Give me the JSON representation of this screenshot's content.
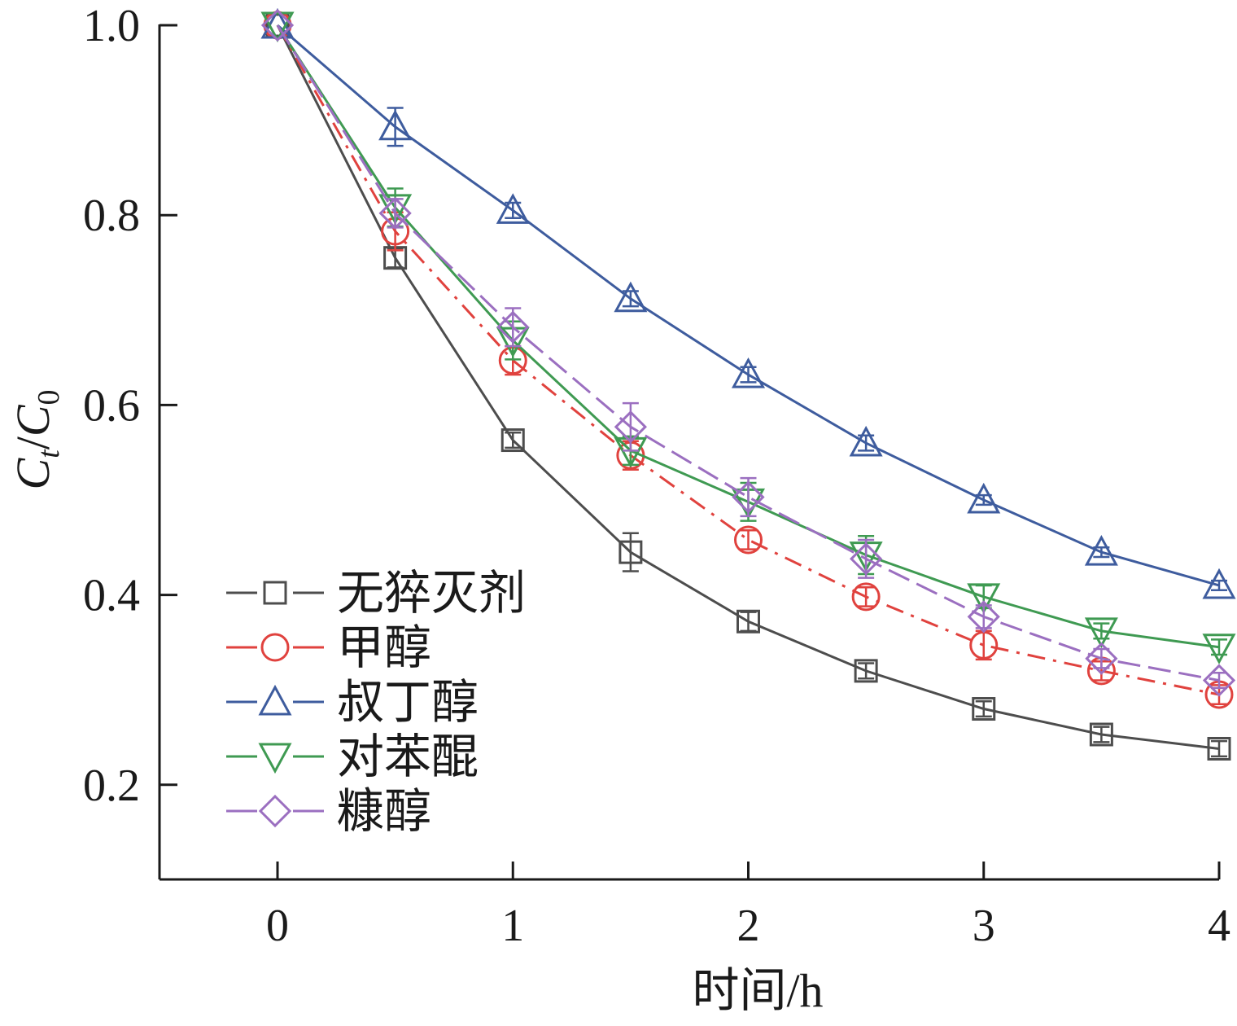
{
  "chart_data": {
    "type": "line",
    "title": "",
    "xlabel": "时间/h",
    "ylabel": {
      "main": "C",
      "sub1": "t",
      "sep": "/",
      "main2": "C",
      "sub2": "0"
    },
    "xlim": [
      -0.5,
      4
    ],
    "ylim": [
      0.1,
      1.0
    ],
    "xticks": [
      0,
      1,
      2,
      3,
      4
    ],
    "xtick_labels": [
      "0",
      "1",
      "2",
      "3",
      "4"
    ],
    "yticks": [
      0.2,
      0.4,
      0.6,
      0.8,
      1.0
    ],
    "ytick_labels": [
      "0.2",
      "0.4",
      "0.6",
      "0.8",
      "1.0"
    ],
    "grid": false,
    "legend_position": "bottom-left",
    "x": [
      0,
      0.5,
      1,
      1.5,
      2,
      2.5,
      3,
      3.5,
      4
    ],
    "series": [
      {
        "name": "无猝灭剂",
        "color": "#4d4d4d",
        "marker": "square",
        "dash": "solid",
        "values": [
          1.0,
          0.755,
          0.563,
          0.445,
          0.372,
          0.32,
          0.28,
          0.253,
          0.238
        ],
        "errors": [
          0.0,
          0.01,
          0.008,
          0.02,
          0.01,
          0.008,
          0.008,
          0.008,
          0.008
        ]
      },
      {
        "name": "甲醇",
        "color": "#e0423e",
        "marker": "circle",
        "dash": "dashdot",
        "values": [
          1.0,
          0.783,
          0.647,
          0.547,
          0.458,
          0.398,
          0.347,
          0.32,
          0.295
        ],
        "errors": [
          0.0,
          0.02,
          0.015,
          0.015,
          0.01,
          0.01,
          0.015,
          0.01,
          0.01
        ]
      },
      {
        "name": "叔丁醇",
        "color": "#3e5c9e",
        "marker": "triangle-up",
        "dash": "solid",
        "values": [
          1.0,
          0.893,
          0.805,
          0.712,
          0.632,
          0.56,
          0.5,
          0.445,
          0.41
        ],
        "errors": [
          0.0,
          0.02,
          0.008,
          0.008,
          0.008,
          0.008,
          0.005,
          0.005,
          0.005
        ]
      },
      {
        "name": "对苯醌",
        "color": "#3f9a52",
        "marker": "triangle-down",
        "dash": "solid",
        "values": [
          1.0,
          0.808,
          0.668,
          0.552,
          0.498,
          0.442,
          0.398,
          0.362,
          0.345
        ],
        "errors": [
          0.0,
          0.02,
          0.02,
          0.015,
          0.02,
          0.02,
          0.012,
          0.008,
          0.008
        ]
      },
      {
        "name": "糠醇",
        "color": "#9b6fc0",
        "marker": "diamond",
        "dash": "longdash",
        "values": [
          1.0,
          0.802,
          0.682,
          0.577,
          0.503,
          0.438,
          0.377,
          0.333,
          0.31
        ],
        "errors": [
          0.0,
          0.015,
          0.02,
          0.025,
          0.02,
          0.02,
          0.012,
          0.01,
          0.008
        ]
      }
    ]
  }
}
